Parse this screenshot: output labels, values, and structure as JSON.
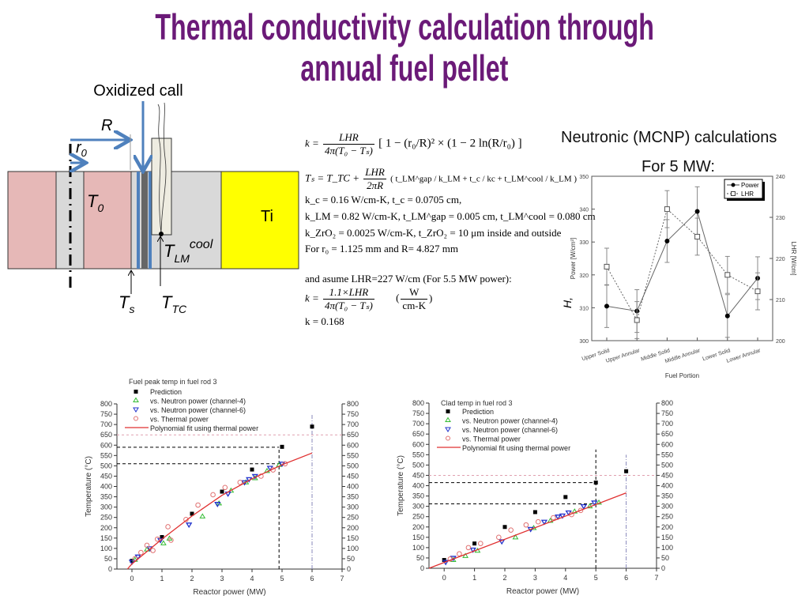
{
  "title": {
    "line1": "Thermal conductivity calculation through",
    "line2": "annual fuel pellet"
  },
  "colors": {
    "title": "#6b1a78",
    "pellet": "#e6b8b7",
    "gray": "#d9d9d9",
    "ti": "#ffff00",
    "blue": "#4f81bd",
    "fit": "#e03030",
    "ch4": "#33bb33",
    "ch6": "#2233cc",
    "thermal": "#e07070"
  },
  "diagram": {
    "oxidized_label": "Oxidized call",
    "R": "R",
    "r0": "r",
    "r0_sub": "0",
    "T0": "T",
    "T0_sub": "0",
    "Ti": "Ti",
    "TLM": "T",
    "TLM_sub": "LM",
    "TLM_sup": "cool",
    "Ts": "T",
    "Ts_sub": "s",
    "TTC": "T",
    "TTC_sub": "TC"
  },
  "equations": {
    "eq1": {
      "lhs": "k =",
      "num": "LHR",
      "den": "4π(T₀ − Tₛ)",
      "rest": "[ 1 − (r₀/R)² × (1 − 2 ln(R/r₀) ]"
    },
    "eq2": {
      "lhs": "Tₛ = T_TC +",
      "num": "LHR",
      "den": "2πR",
      "rest": "( t_LM^gap / k_LM + t_c / kc + t_LM^cool / k_LM )"
    },
    "line3": "k_c = 0.16  W/cm-K,  t_c = 0.0705 cm,",
    "line4": "k_LM = 0.82  W/cm-K,  t_LM^gap = 0.005 cm,  t_LM^cool = 0.080 cm",
    "line5": "k_ZrO₂ = 0.0025 W/cm-K,  t_ZrO₂ = 10  μm  inside and outside",
    "line6": "For  r₀ = 1.125  mm and R= 4.827 mm",
    "line7": "and asume LHR=227 W/cm (For 5.5 MW power):",
    "eq3": {
      "lhs": "k =",
      "num": "1.1×LHR",
      "den": "4π(T₀ − Tₛ)",
      "unit_num": "W",
      "unit_den": "cm-K"
    },
    "line8": "k  = 0.168"
  },
  "mcnp": {
    "heading": "Neutronic (MCNP) calculations",
    "sub": "For 5 MW:"
  },
  "chart_data": [
    {
      "type": "line",
      "title": "For 5 MW:",
      "categories": [
        "Upper Solid",
        "Upper Annular",
        "Middle Solid",
        "Middle Annular",
        "Lower Solid",
        "Lower Annular"
      ],
      "xlabel": "Fuel Portion",
      "ylabel": "Power [W/cm³]",
      "ylabel_prefix": "H,",
      "y2label": "LHR [W/cm]",
      "ylim": [
        300,
        350
      ],
      "yticks": [
        300,
        310,
        320,
        330,
        340,
        350
      ],
      "y2lim": [
        200,
        240
      ],
      "y2ticks": [
        200,
        210,
        220,
        230,
        240
      ],
      "legend_position": "top-right",
      "series": [
        {
          "name": "Power",
          "axis": "left",
          "marker": "filled-circle",
          "values": [
            310.5,
            309,
            330.3,
            339.3,
            307.5,
            319
          ],
          "error": [
            6.5,
            6.5,
            6.5,
            7.5,
            6.5,
            6.5
          ]
        },
        {
          "name": "LHR",
          "axis": "right",
          "marker": "open-square",
          "values": [
            218,
            205,
            232,
            225.3,
            216,
            212
          ],
          "error": [
            4.5,
            4.5,
            4.5,
            4.5,
            4.5,
            4.5
          ]
        }
      ]
    },
    {
      "type": "scatter",
      "title": "Fuel peak temp in fuel rod 3",
      "xlabel": "Reactor power (MW)",
      "ylabel": "Temperature (°C)",
      "xlim": [
        -0.5,
        7
      ],
      "xticks": [
        0,
        1,
        2,
        3,
        4,
        5,
        6,
        7
      ],
      "ylim": [
        0,
        800
      ],
      "yticks": [
        0,
        50,
        100,
        150,
        200,
        250,
        300,
        350,
        400,
        450,
        500,
        550,
        600,
        650,
        700,
        750,
        800
      ],
      "legend_position": "top-left",
      "series": [
        {
          "name": "Prediction",
          "marker": "square",
          "points": [
            [
              0,
              40
            ],
            [
              1,
              155
            ],
            [
              2,
              268
            ],
            [
              3,
              375
            ],
            [
              4,
              482
            ],
            [
              5,
              592
            ],
            [
              6,
              690
            ]
          ]
        },
        {
          "name": "vs. Neutron power (channel-4)",
          "marker": "triangle-up",
          "points": [
            [
              0.1,
              45
            ],
            [
              0.5,
              95
            ],
            [
              1.05,
              125
            ],
            [
              1.25,
              148
            ],
            [
              2.35,
              255
            ],
            [
              2.9,
              318
            ],
            [
              3.3,
              380
            ],
            [
              3.8,
              420
            ],
            [
              4.1,
              440
            ],
            [
              4.5,
              475
            ],
            [
              4.9,
              505
            ]
          ]
        },
        {
          "name": "vs. Neutron power (channel-6)",
          "marker": "triangle-down",
          "points": [
            [
              0,
              35
            ],
            [
              0.2,
              60
            ],
            [
              0.6,
              100
            ],
            [
              0.95,
              140
            ],
            [
              1.9,
              215
            ],
            [
              2.85,
              315
            ],
            [
              3.2,
              365
            ],
            [
              3.75,
              420
            ],
            [
              3.9,
              435
            ],
            [
              4.1,
              450
            ],
            [
              4.6,
              490
            ],
            [
              5,
              510
            ]
          ]
        },
        {
          "name": "vs. Thermal power",
          "marker": "open-circle",
          "points": [
            [
              0.1,
              50
            ],
            [
              0.3,
              80
            ],
            [
              0.5,
              115
            ],
            [
              0.7,
              90
            ],
            [
              0.85,
              145
            ],
            [
              1.2,
              205
            ],
            [
              1.3,
              140
            ],
            [
              1.8,
              240
            ],
            [
              2.2,
              310
            ],
            [
              2.7,
              360
            ],
            [
              3.1,
              395
            ],
            [
              3.6,
              420
            ],
            [
              4.3,
              450
            ],
            [
              4.7,
              480
            ],
            [
              5.1,
              510
            ]
          ]
        },
        {
          "name": "Polynomial fit using thermal power",
          "marker": "line",
          "points": [
            [
              -0.15,
              0
            ],
            [
              0,
              25
            ],
            [
              1,
              145
            ],
            [
              2,
              257
            ],
            [
              3,
              357
            ],
            [
              4,
              437
            ],
            [
              5,
              505
            ],
            [
              6,
              562
            ]
          ]
        }
      ],
      "reference_lines": {
        "h_dashed": [
          590,
          510
        ],
        "v_dashed": 4.9,
        "h_limit": 650,
        "v_limit": 6
      }
    },
    {
      "type": "scatter",
      "title": "Clad temp in fuel rod 3",
      "xlabel": "Reactor power (MW)",
      "ylabel": "Temperature (°C)",
      "xlim": [
        -0.5,
        7
      ],
      "xticks": [
        0,
        1,
        2,
        3,
        4,
        5,
        6,
        7
      ],
      "ylim": [
        0,
        800
      ],
      "yticks": [
        0,
        50,
        100,
        150,
        200,
        250,
        300,
        350,
        400,
        450,
        500,
        550,
        600,
        650,
        700,
        750,
        800
      ],
      "legend_position": "top-left",
      "series": [
        {
          "name": "Prediction",
          "marker": "square",
          "points": [
            [
              0,
              40
            ],
            [
              1,
              120
            ],
            [
              2,
              200
            ],
            [
              3,
              272
            ],
            [
              4,
              345
            ],
            [
              5,
              415
            ],
            [
              6,
              470
            ]
          ]
        },
        {
          "name": "vs. Neutron power (channel-4)",
          "marker": "triangle-up",
          "points": [
            [
              0.3,
              40
            ],
            [
              0.7,
              60
            ],
            [
              1.1,
              85
            ],
            [
              2.35,
              150
            ],
            [
              2.95,
              195
            ],
            [
              3.5,
              230
            ],
            [
              4.3,
              275
            ],
            [
              4.8,
              300
            ],
            [
              5.1,
              318
            ]
          ]
        },
        {
          "name": "vs. Neutron power (channel-6)",
          "marker": "triangle-down",
          "points": [
            [
              0.05,
              30
            ],
            [
              0.3,
              50
            ],
            [
              0.95,
              90
            ],
            [
              1.9,
              130
            ],
            [
              2.85,
              190
            ],
            [
              3.3,
              225
            ],
            [
              3.75,
              250
            ],
            [
              3.9,
              255
            ],
            [
              4.1,
              270
            ],
            [
              4.6,
              300
            ],
            [
              4.95,
              318
            ]
          ]
        },
        {
          "name": "vs. Thermal power",
          "marker": "open-circle",
          "points": [
            [
              0.2,
              45
            ],
            [
              0.5,
              70
            ],
            [
              0.8,
              100
            ],
            [
              1.2,
              120
            ],
            [
              1.8,
              150
            ],
            [
              2.2,
              185
            ],
            [
              2.7,
              210
            ],
            [
              3.1,
              225
            ],
            [
              3.6,
              245
            ],
            [
              4.2,
              260
            ],
            [
              4.5,
              280
            ]
          ]
        },
        {
          "name": "Polynomial fit using thermal power",
          "marker": "line",
          "points": [
            [
              -0.5,
              0
            ],
            [
              6,
              365
            ]
          ]
        }
      ],
      "reference_lines": {
        "h_dashed": [
          415,
          312
        ],
        "v_dashed": 5,
        "h_limit": 450,
        "v_limit": 6
      }
    }
  ]
}
